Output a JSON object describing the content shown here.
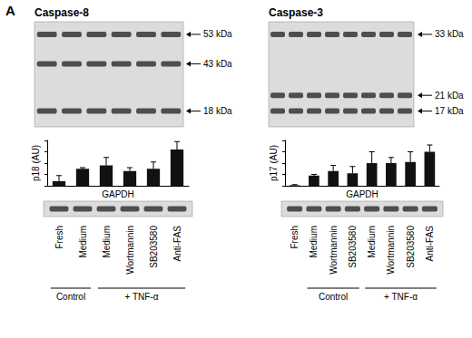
{
  "panel": "A",
  "chart_data": [
    {
      "type": "bar",
      "title": "Caspase-8",
      "ylabel": "p18 (AU)",
      "categories": [
        "Fresh",
        "Medium",
        "Medium",
        "Wortmannin",
        "SB203580",
        "Anti-FAS"
      ],
      "values": [
        0.4,
        1.5,
        1.8,
        1.3,
        1.5,
        3.2
      ],
      "errors": [
        0.5,
        0.1,
        0.7,
        0.3,
        0.6,
        0.7
      ],
      "color": "#111111",
      "ylim": [
        0,
        4
      ],
      "yticks": [
        0,
        1,
        2,
        3,
        4
      ],
      "tick_labels": "x",
      "bands": [
        "53 kDa",
        "43 kDa",
        "18 kDa"
      ],
      "loading_control": "GAPDH",
      "groups": [
        {
          "label": "Control",
          "span": [
            0,
            1
          ]
        },
        {
          "label": "+ TNF-α",
          "span": [
            2,
            5
          ]
        }
      ]
    },
    {
      "type": "bar",
      "title": "Caspase-3",
      "ylabel": "p17 (AU)",
      "categories": [
        "Fresh",
        "Medium",
        "Wortmannin",
        "SB203580",
        "Medium",
        "Wortmannin",
        "SB203580",
        "Anti-FAS"
      ],
      "values": [
        0.05,
        0.9,
        1.3,
        1.1,
        2.0,
        2.0,
        2.1,
        3.0
      ],
      "errors": [
        0.05,
        0.1,
        0.5,
        0.6,
        1.0,
        0.5,
        0.9,
        0.6
      ],
      "color": "#111111",
      "ylim": [
        0,
        4
      ],
      "yticks": [
        0,
        1,
        2,
        3,
        4
      ],
      "tick_labels": "x",
      "bands": [
        "33 kDa",
        "21 kDa",
        "17 kDa"
      ],
      "loading_control": "GAPDH",
      "groups": [
        {
          "label": "Control",
          "span": [
            1,
            3
          ]
        },
        {
          "label": "+ TNF-α",
          "span": [
            4,
            7
          ]
        }
      ]
    }
  ]
}
